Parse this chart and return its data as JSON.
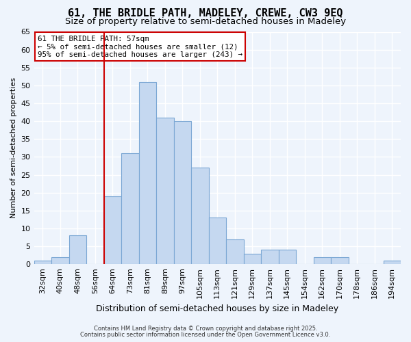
{
  "title": "61, THE BRIDLE PATH, MADELEY, CREWE, CW3 9EQ",
  "subtitle": "Size of property relative to semi-detached houses in Madeley",
  "xlabel": "Distribution of semi-detached houses by size in Madeley",
  "ylabel": "Number of semi-detached properties",
  "categories": [
    "32sqm",
    "40sqm",
    "48sqm",
    "56sqm",
    "64sqm",
    "73sqm",
    "81sqm",
    "89sqm",
    "97sqm",
    "105sqm",
    "113sqm",
    "121sqm",
    "129sqm",
    "137sqm",
    "145sqm",
    "154sqm",
    "162sqm",
    "170sqm",
    "178sqm",
    "186sqm",
    "194sqm"
  ],
  "values": [
    1,
    2,
    8,
    0,
    19,
    31,
    51,
    41,
    40,
    27,
    13,
    7,
    3,
    4,
    4,
    0,
    2,
    2,
    0,
    0,
    1
  ],
  "bar_color": "#c5d8f0",
  "bar_edge_color": "#7ba7d4",
  "ylim": [
    0,
    65
  ],
  "yticks": [
    0,
    5,
    10,
    15,
    20,
    25,
    30,
    35,
    40,
    45,
    50,
    55,
    60,
    65
  ],
  "vline_x_index": 4,
  "vline_color": "#cc0000",
  "annotation_title": "61 THE BRIDLE PATH: 57sqm",
  "annotation_line1": "← 5% of semi-detached houses are smaller (12)",
  "annotation_line2": "95% of semi-detached houses are larger (243) →",
  "annotation_box_facecolor": "#ffffff",
  "annotation_box_edgecolor": "#cc0000",
  "footer1": "Contains HM Land Registry data © Crown copyright and database right 2025.",
  "footer2": "Contains public sector information licensed under the Open Government Licence v3.0.",
  "background_color": "#eef4fc",
  "grid_color": "#ffffff",
  "title_fontsize": 11,
  "subtitle_fontsize": 9.5,
  "axis_fontsize": 8,
  "xlabel_fontsize": 9,
  "ylabel_fontsize": 8
}
